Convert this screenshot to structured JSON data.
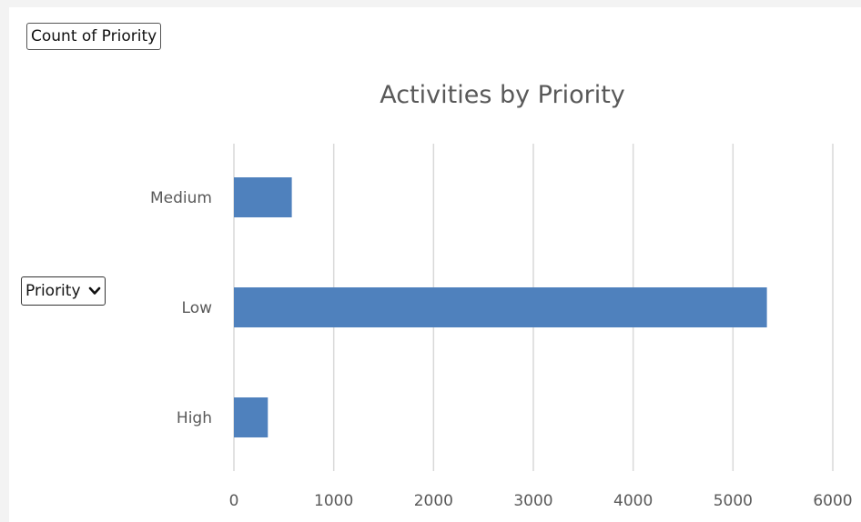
{
  "field_button": {
    "label": "Count of Priority"
  },
  "filter_button": {
    "label": "Priority",
    "icon": "chevron-down-icon"
  },
  "colors": {
    "bar": "#4f81bd",
    "grid": "#d9d9d9",
    "text": "#595959"
  },
  "chart_data": {
    "type": "bar",
    "orientation": "horizontal",
    "title": "Activities by Priority",
    "categories": [
      "Medium",
      "Low",
      "High"
    ],
    "values": [
      580,
      5340,
      340
    ],
    "xlim": [
      0,
      6000
    ],
    "xticks": [
      "0",
      "1000",
      "2000",
      "3000",
      "4000",
      "5000",
      "6000"
    ],
    "xlabel": "",
    "ylabel": "",
    "grid": "vertical",
    "legend": "none"
  }
}
